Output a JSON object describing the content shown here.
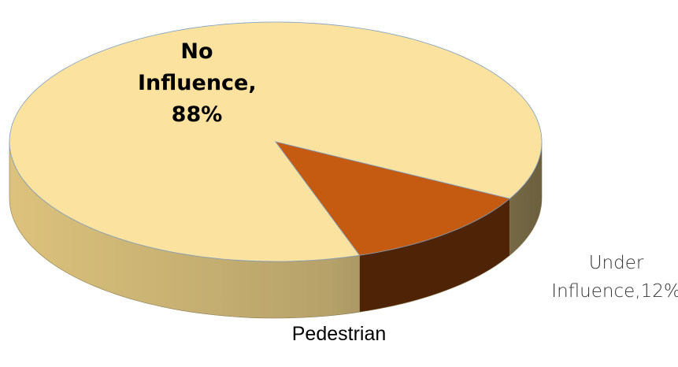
{
  "chart_data": {
    "type": "pie",
    "title": "Pedestrian",
    "categories": [
      "No Influence,",
      "Under Influence,"
    ],
    "values": [
      88,
      12
    ],
    "value_labels": [
      "88%",
      "12%"
    ],
    "series": [
      {
        "colors": [
          "#fbe29f",
          "#c55a11"
        ]
      }
    ]
  }
}
